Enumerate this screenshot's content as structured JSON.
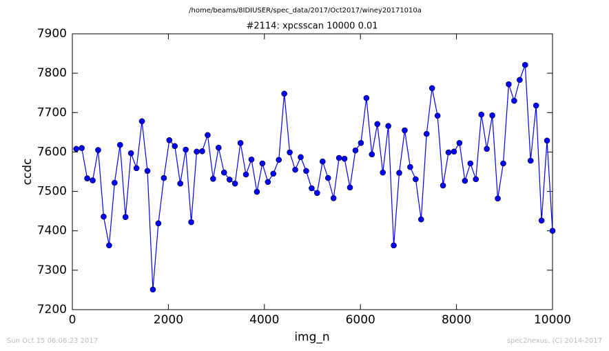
{
  "chart_data": {
    "type": "line",
    "suptitle": "/home/beams/8IDIUSER/spec_data/2017/Oct2017/winey20171010a",
    "title": "#2114: xpcsscan 10000 0.01",
    "xlabel": "img_n",
    "ylabel": "ccdc",
    "timestamp": "Sun Oct 15 06:06:23 2017",
    "credit": "spec2nexus, (C) 2014-2017",
    "x": [
      82,
      196,
      310,
      424,
      538,
      652,
      766,
      880,
      994,
      1108,
      1222,
      1336,
      1450,
      1564,
      1678,
      1792,
      1906,
      2020,
      2134,
      2248,
      2362,
      2476,
      2590,
      2704,
      2818,
      2932,
      3046,
      3160,
      3274,
      3388,
      3502,
      3616,
      3730,
      3844,
      3958,
      4072,
      4186,
      4300,
      4414,
      4528,
      4642,
      4756,
      4870,
      4984,
      5098,
      5212,
      5326,
      5440,
      5554,
      5668,
      5782,
      5896,
      6010,
      6124,
      6238,
      6352,
      6466,
      6580,
      6694,
      6808,
      6922,
      7036,
      7150,
      7264,
      7378,
      7492,
      7606,
      7720,
      7834,
      7948,
      8062,
      8176,
      8290,
      8404,
      8518,
      8632,
      8746,
      8860,
      8974,
      9088,
      9202,
      9316,
      9430,
      9544,
      9658,
      9772,
      9886,
      10000
    ],
    "series": [
      {
        "color": "#0000ff",
        "values": [
          7608,
          7610,
          7533,
          7528,
          7605,
          7436,
          7363,
          7522,
          7618,
          7435,
          7597,
          7559,
          7678,
          7552,
          7251,
          7419,
          7534,
          7630,
          7615,
          7520,
          7606,
          7422,
          7601,
          7602,
          7643,
          7532,
          7611,
          7548,
          7530,
          7520,
          7623,
          7543,
          7581,
          7499,
          7571,
          7524,
          7545,
          7580,
          7748,
          7599,
          7555,
          7587,
          7552,
          7508,
          7496,
          7576,
          7534,
          7483,
          7585,
          7583,
          7510,
          7604,
          7623,
          7737,
          7594,
          7671,
          7548,
          7666,
          7363,
          7547,
          7655,
          7562,
          7531,
          7429,
          7646,
          7762,
          7692,
          7515,
          7599,
          7601,
          7623,
          7527,
          7571,
          7531,
          7695,
          7608,
          7693,
          7482,
          7571,
          7772,
          7730,
          7783,
          7821,
          7578,
          7718,
          7426,
          7629,
          7400
        ]
      }
    ],
    "xlim": [
      0,
      10000
    ],
    "ylim": [
      7200,
      7900
    ],
    "xticks": [
      0,
      2000,
      4000,
      6000,
      8000,
      10000
    ],
    "yticks": [
      7200,
      7300,
      7400,
      7500,
      7600,
      7700,
      7800,
      7900
    ]
  }
}
